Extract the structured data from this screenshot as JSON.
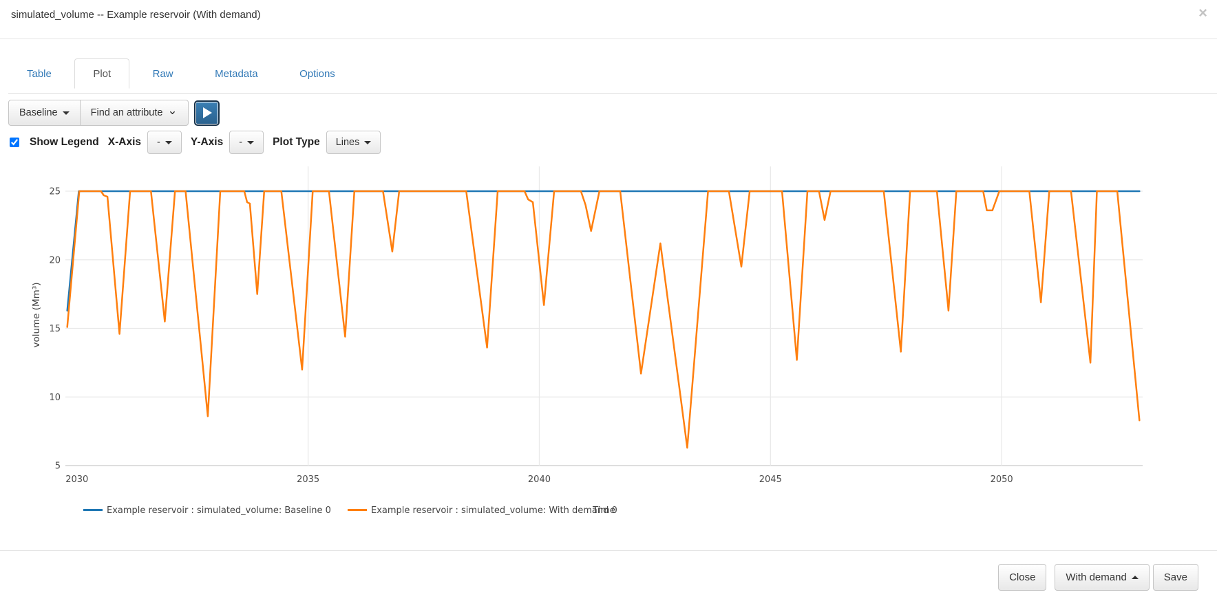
{
  "modal": {
    "title": "simulated_volume -- Example reservoir (With demand)",
    "close_icon": "×"
  },
  "tabs": [
    {
      "label": "Table",
      "active": false
    },
    {
      "label": "Plot",
      "active": true
    },
    {
      "label": "Raw",
      "active": false
    },
    {
      "label": "Metadata",
      "active": false
    },
    {
      "label": "Options",
      "active": false
    }
  ],
  "toolbar": {
    "scenario_button_label": "Baseline",
    "attribute_dropdown_label": "Find an attribute",
    "play_button": "play"
  },
  "plot_controls": {
    "show_legend_label": "Show Legend",
    "show_legend_checked": true,
    "x_axis_label": "X-Axis",
    "x_axis_value": "-",
    "y_axis_label": "Y-Axis",
    "y_axis_value": "-",
    "plot_type_label": "Plot Type",
    "plot_type_value": "Lines"
  },
  "footer": {
    "close_label": "Close",
    "scenario_label": "With demand",
    "save_label": "Save"
  },
  "chart_data": {
    "type": "line",
    "xlabel": "Time",
    "ylabel": "volume (Mm³)",
    "x_ticks": [
      2030,
      2035,
      2040,
      2045,
      2050
    ],
    "y_ticks": [
      5,
      10,
      15,
      20,
      25
    ],
    "x_range": [
      2029.75,
      2053.05
    ],
    "y_range": [
      5,
      26.9
    ],
    "grid": true,
    "legend_position": "bottom",
    "colors": {
      "baseline": "#1f77b4",
      "with_demand": "#ff7f0e"
    },
    "series": [
      {
        "name": "Example reservoir : simulated_volume: Baseline 0",
        "color": "#1f77b4",
        "points": [
          [
            2029.79,
            16.3
          ],
          [
            2030.04,
            25
          ],
          [
            2052.98,
            25
          ]
        ]
      },
      {
        "name": "Example reservoir : simulated_volume: With demand 0",
        "color": "#ff7f0e",
        "points": [
          [
            2029.79,
            15.1
          ],
          [
            2030.05,
            25
          ],
          [
            2030.52,
            25
          ],
          [
            2030.58,
            24.7
          ],
          [
            2030.66,
            24.6
          ],
          [
            2030.92,
            14.6
          ],
          [
            2031.15,
            25
          ],
          [
            2031.6,
            25
          ],
          [
            2031.9,
            15.5
          ],
          [
            2032.12,
            25
          ],
          [
            2032.35,
            25
          ],
          [
            2032.83,
            8.6
          ],
          [
            2033.1,
            25
          ],
          [
            2033.62,
            25
          ],
          [
            2033.68,
            24.2
          ],
          [
            2033.74,
            24.1
          ],
          [
            2033.9,
            17.5
          ],
          [
            2034.05,
            25
          ],
          [
            2034.42,
            25
          ],
          [
            2034.87,
            12.0
          ],
          [
            2035.1,
            25
          ],
          [
            2035.45,
            25
          ],
          [
            2035.8,
            14.4
          ],
          [
            2036.0,
            25
          ],
          [
            2036.62,
            25
          ],
          [
            2036.82,
            20.6
          ],
          [
            2036.97,
            25
          ],
          [
            2038.42,
            25
          ],
          [
            2038.87,
            13.6
          ],
          [
            2039.1,
            25
          ],
          [
            2039.68,
            25
          ],
          [
            2039.76,
            24.4
          ],
          [
            2039.86,
            24.2
          ],
          [
            2040.1,
            16.7
          ],
          [
            2040.32,
            25
          ],
          [
            2040.9,
            25
          ],
          [
            2041.0,
            24.0
          ],
          [
            2041.12,
            22.1
          ],
          [
            2041.3,
            25
          ],
          [
            2041.75,
            25
          ],
          [
            2042.2,
            11.7
          ],
          [
            2042.62,
            21.2
          ],
          [
            2043.2,
            6.3
          ],
          [
            2043.65,
            25
          ],
          [
            2044.1,
            25
          ],
          [
            2044.37,
            19.5
          ],
          [
            2044.55,
            25
          ],
          [
            2045.25,
            25
          ],
          [
            2045.57,
            12.7
          ],
          [
            2045.8,
            25
          ],
          [
            2046.05,
            25
          ],
          [
            2046.17,
            22.9
          ],
          [
            2046.3,
            25
          ],
          [
            2047.45,
            25
          ],
          [
            2047.82,
            13.3
          ],
          [
            2048.02,
            25
          ],
          [
            2048.6,
            25
          ],
          [
            2048.85,
            16.3
          ],
          [
            2049.02,
            25
          ],
          [
            2049.6,
            25
          ],
          [
            2049.68,
            23.6
          ],
          [
            2049.8,
            23.6
          ],
          [
            2049.95,
            25
          ],
          [
            2050.6,
            25
          ],
          [
            2050.85,
            16.9
          ],
          [
            2051.03,
            25
          ],
          [
            2051.5,
            25
          ],
          [
            2051.92,
            12.5
          ],
          [
            2052.06,
            25
          ],
          [
            2052.5,
            25
          ],
          [
            2052.98,
            8.3
          ]
        ]
      }
    ]
  }
}
